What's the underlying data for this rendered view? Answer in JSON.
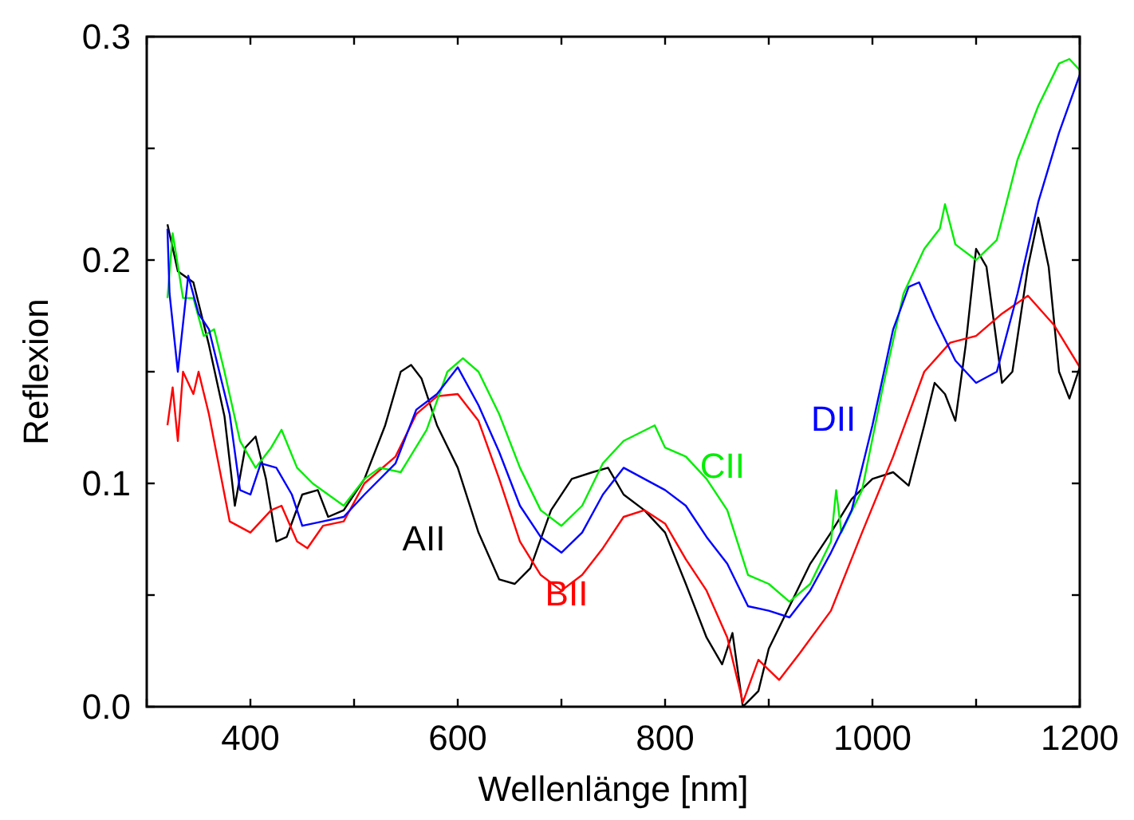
{
  "chart_data": {
    "type": "line",
    "xlabel": "Wellenlänge [nm]",
    "ylabel": "Reflexion",
    "xlim": [
      300,
      1200
    ],
    "ylim": [
      0,
      0.3
    ],
    "xticks": [
      {
        "value": 300,
        "label": null
      },
      400,
      {
        "value": 500,
        "label": null
      },
      600,
      {
        "value": 700,
        "label": null
      },
      800,
      {
        "value": 900,
        "label": null
      },
      1000,
      {
        "value": 1100,
        "label": null
      },
      1200
    ],
    "yticks": [
      {
        "value": 0,
        "label": "0.0"
      },
      {
        "value": 0.05,
        "label": null
      },
      0.1,
      {
        "value": 0.15,
        "label": null
      },
      0.2,
      {
        "value": 0.25,
        "label": null
      },
      0.3
    ],
    "grid": false,
    "series": [
      {
        "name": "AII",
        "color": "#000000",
        "x": [
          320,
          330,
          345,
          360,
          375,
          385,
          395,
          405,
          415,
          425,
          435,
          450,
          465,
          475,
          490,
          510,
          530,
          545,
          555,
          565,
          580,
          600,
          620,
          640,
          655,
          670,
          690,
          710,
          730,
          745,
          760,
          780,
          800,
          820,
          840,
          855,
          865,
          875,
          890,
          900,
          920,
          940,
          960,
          980,
          1000,
          1020,
          1035,
          1050,
          1060,
          1070,
          1080,
          1090,
          1100,
          1110,
          1125,
          1135,
          1150,
          1160,
          1170,
          1180,
          1190,
          1200
        ],
        "values": [
          0.216,
          0.195,
          0.19,
          0.162,
          0.13,
          0.09,
          0.116,
          0.121,
          0.102,
          0.074,
          0.076,
          0.095,
          0.097,
          0.085,
          0.088,
          0.102,
          0.126,
          0.15,
          0.153,
          0.147,
          0.126,
          0.107,
          0.078,
          0.057,
          0.055,
          0.062,
          0.088,
          0.102,
          0.105,
          0.107,
          0.095,
          0.088,
          0.078,
          0.055,
          0.031,
          0.019,
          0.033,
          0,
          0.007,
          0.026,
          0.045,
          0.064,
          0.078,
          0.093,
          0.102,
          0.105,
          0.099,
          0.126,
          0.145,
          0.14,
          0.128,
          0.162,
          0.205,
          0.197,
          0.145,
          0.15,
          0.197,
          0.219,
          0.197,
          0.15,
          0.138,
          0.152
        ]
      },
      {
        "name": "BII",
        "color": "#ff0000",
        "x": [
          320,
          325,
          330,
          335,
          345,
          350,
          360,
          370,
          380,
          400,
          420,
          430,
          445,
          455,
          470,
          490,
          510,
          540,
          560,
          580,
          600,
          620,
          640,
          660,
          680,
          700,
          720,
          740,
          760,
          780,
          800,
          820,
          840,
          860,
          875,
          890,
          910,
          930,
          960,
          990,
          1020,
          1050,
          1075,
          1100,
          1125,
          1150,
          1175,
          1200
        ],
        "values": [
          0.126,
          0.143,
          0.119,
          0.15,
          0.14,
          0.15,
          0.131,
          0.107,
          0.083,
          0.078,
          0.088,
          0.09,
          0.074,
          0.071,
          0.081,
          0.083,
          0.1,
          0.112,
          0.131,
          0.139,
          0.14,
          0.128,
          0.102,
          0.074,
          0.059,
          0.052,
          0.059,
          0.071,
          0.085,
          0.088,
          0.082,
          0.066,
          0.052,
          0.031,
          0.002,
          0.021,
          0.012,
          0.024,
          0.043,
          0.078,
          0.112,
          0.15,
          0.163,
          0.166,
          0.176,
          0.184,
          0.171,
          0.152
        ]
      },
      {
        "name": "CII",
        "color": "#00ee00",
        "x": [
          320,
          325,
          335,
          345,
          355,
          365,
          375,
          390,
          405,
          420,
          430,
          445,
          460,
          475,
          490,
          510,
          525,
          545,
          570,
          590,
          605,
          620,
          640,
          660,
          680,
          700,
          720,
          740,
          760,
          790,
          800,
          820,
          840,
          860,
          880,
          900,
          920,
          940,
          960,
          965,
          970,
          990,
          1010,
          1030,
          1050,
          1065,
          1070,
          1080,
          1100,
          1120,
          1140,
          1160,
          1180,
          1190,
          1200
        ],
        "values": [
          0.183,
          0.212,
          0.183,
          0.183,
          0.166,
          0.169,
          0.15,
          0.119,
          0.107,
          0.116,
          0.124,
          0.107,
          0.1,
          0.095,
          0.09,
          0.102,
          0.107,
          0.105,
          0.124,
          0.15,
          0.156,
          0.15,
          0.131,
          0.107,
          0.088,
          0.081,
          0.09,
          0.109,
          0.119,
          0.126,
          0.116,
          0.112,
          0.102,
          0.088,
          0.059,
          0.055,
          0.047,
          0.055,
          0.074,
          0.097,
          0.078,
          0.097,
          0.143,
          0.185,
          0.205,
          0.214,
          0.225,
          0.207,
          0.2,
          0.209,
          0.245,
          0.269,
          0.288,
          0.29,
          0.285
        ]
      },
      {
        "name": "DII",
        "color": "#0000ff",
        "x": [
          320,
          322,
          330,
          340,
          350,
          360,
          370,
          380,
          390,
          400,
          410,
          425,
          440,
          450,
          470,
          490,
          510,
          540,
          560,
          580,
          600,
          620,
          640,
          660,
          680,
          700,
          720,
          740,
          760,
          780,
          800,
          820,
          840,
          860,
          880,
          900,
          920,
          940,
          960,
          980,
          1000,
          1020,
          1035,
          1045,
          1060,
          1080,
          1100,
          1120,
          1140,
          1160,
          1180,
          1200
        ],
        "values": [
          0.214,
          0.185,
          0.15,
          0.193,
          0.176,
          0.169,
          0.15,
          0.131,
          0.097,
          0.095,
          0.109,
          0.107,
          0.095,
          0.081,
          0.083,
          0.085,
          0.095,
          0.109,
          0.133,
          0.14,
          0.152,
          0.135,
          0.114,
          0.09,
          0.076,
          0.069,
          0.078,
          0.095,
          0.107,
          0.102,
          0.097,
          0.09,
          0.076,
          0.064,
          0.045,
          0.043,
          0.04,
          0.052,
          0.069,
          0.088,
          0.126,
          0.169,
          0.188,
          0.19,
          0.174,
          0.155,
          0.145,
          0.15,
          0.185,
          0.226,
          0.257,
          0.283
        ]
      }
    ]
  }
}
